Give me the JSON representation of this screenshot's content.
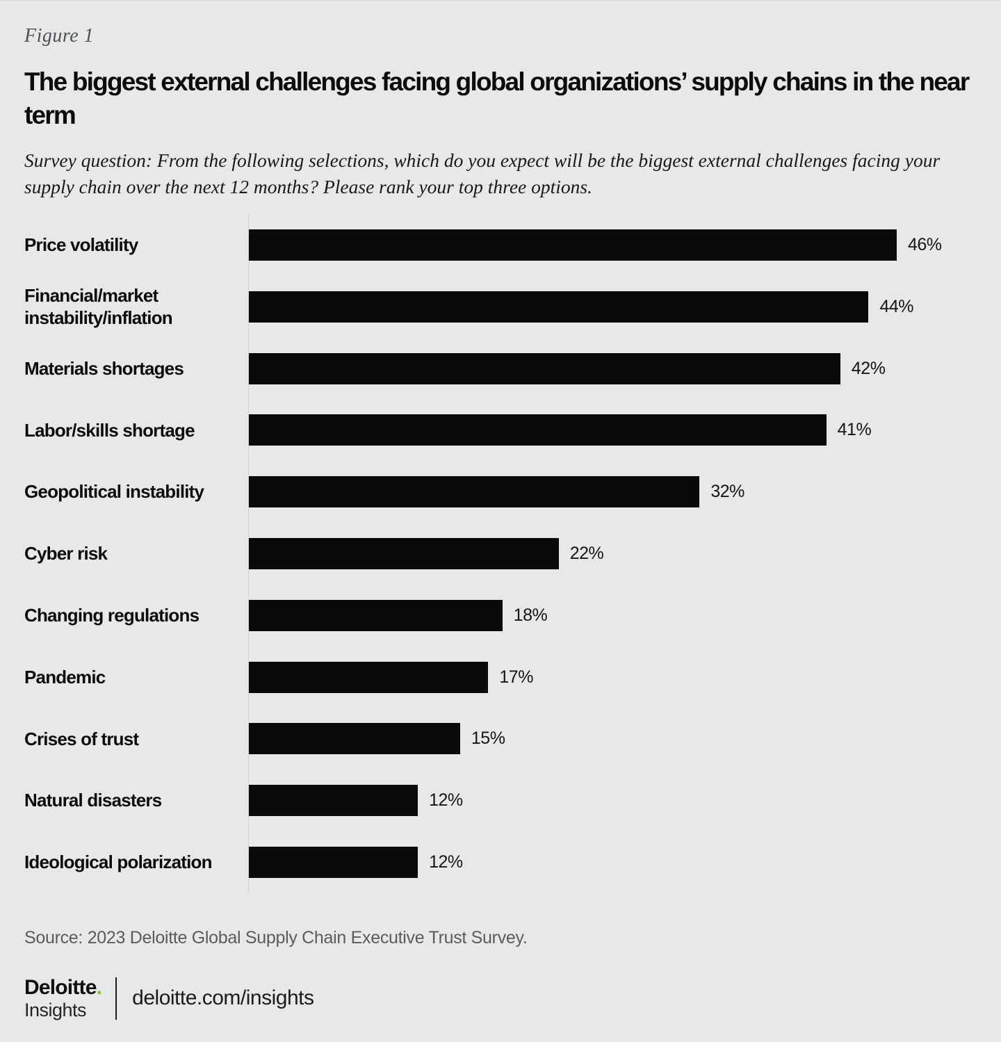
{
  "figure": {
    "label": "Figure 1"
  },
  "header": {
    "title": "The biggest external challenges facing global organizations’ supply chains in the near term",
    "survey_question": "Survey question: From the following selections, which do you expect will be the biggest external challenges facing your supply chain over the next 12 months? Please rank your top three options."
  },
  "chart_data": {
    "type": "bar",
    "orientation": "horizontal",
    "categories": [
      "Price volatility",
      "Financial/market instability/inflation",
      "Materials shortages",
      "Labor/skills shortage",
      "Geopolitical instability",
      "Cyber risk",
      "Changing regulations",
      "Pandemic",
      "Crises of trust",
      "Natural disasters",
      "Ideological polarization"
    ],
    "values": [
      46,
      44,
      42,
      41,
      32,
      22,
      18,
      17,
      15,
      12,
      12
    ],
    "value_suffix": "%",
    "value_labels": [
      "46%",
      "44%",
      "42%",
      "41%",
      "32%",
      "22%",
      "18%",
      "17%",
      "15%",
      "12%",
      "12%"
    ],
    "title": "The biggest external challenges facing global organizations’ supply chains in the near term",
    "xlabel": "",
    "ylabel": "",
    "xlim": [
      0,
      52
    ],
    "grid": false,
    "legend": false,
    "bar_color": "#0a0a0b",
    "background_color": "#e7e8e9"
  },
  "footer": {
    "source": "Source: 2023 Deloitte Global Supply Chain Executive Trust Survey.",
    "brand": "Deloitte",
    "brand_dot": ".",
    "brand_sub": "Insights",
    "link": "deloitte.com/insights"
  },
  "colors": {
    "accent_green": "#86bc25",
    "bar": "#0a0a0b",
    "background": "#e7e8e9",
    "source_text": "#5a5b5d"
  }
}
